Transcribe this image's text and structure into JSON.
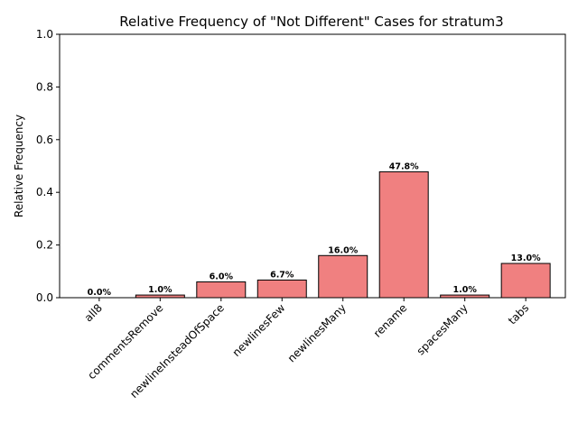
{
  "chart_data": {
    "type": "bar",
    "title": "Relative Frequency of \"Not Different\" Cases for stratum3",
    "xlabel": "",
    "ylabel": "Relative Frequency",
    "ylim": [
      0,
      1.0
    ],
    "yticks": [
      "0.0",
      "0.2",
      "0.4",
      "0.6",
      "0.8",
      "1.0"
    ],
    "categories": [
      "all8",
      "commentsRemove",
      "newlineInsteadOfSpace",
      "newlinesFew",
      "newlinesMany",
      "rename",
      "spacesMany",
      "tabs"
    ],
    "values": [
      0.0,
      0.01,
      0.06,
      0.067,
      0.16,
      0.478,
      0.01,
      0.13
    ],
    "data_labels": [
      "0.0%",
      "1.0%",
      "6.0%",
      "6.7%",
      "16.0%",
      "47.8%",
      "1.0%",
      "13.0%"
    ],
    "bar_color": "#f08080",
    "edge_color": "#000000",
    "grid": false,
    "legend": "none"
  }
}
